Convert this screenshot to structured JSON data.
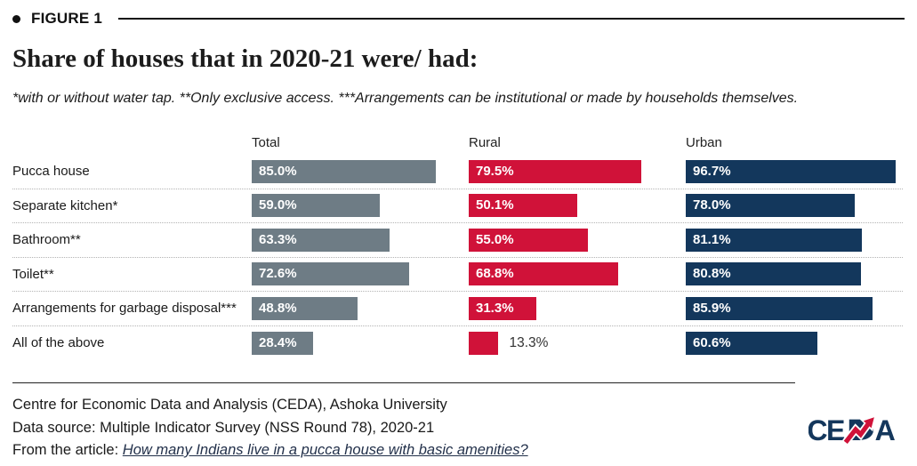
{
  "header": {
    "figure_label": "FIGURE 1",
    "title": "Share of houses that in 2020-21 were/ had:",
    "subtitle": "*with or without water tap. **Only exclusive access. ***Arrangements can be institutional or made by households themselves."
  },
  "chart_data": {
    "type": "bar",
    "orientation": "horizontal",
    "categories": [
      "Pucca house",
      "Separate kitchen*",
      "Bathroom**",
      "Toilet**",
      "Arrangements for garbage disposal***",
      "All of the above"
    ],
    "series": [
      {
        "name": "Total",
        "color": "#6e7c85",
        "values": [
          85.0,
          59.0,
          63.3,
          72.6,
          48.8,
          28.4
        ]
      },
      {
        "name": "Rural",
        "color": "#d01239",
        "values": [
          79.5,
          50.1,
          55.0,
          68.8,
          31.3,
          13.3
        ]
      },
      {
        "name": "Urban",
        "color": "#13375c",
        "values": [
          96.7,
          78.0,
          81.1,
          80.8,
          85.9,
          60.6
        ]
      }
    ],
    "value_suffix": "%",
    "xlim": [
      0,
      100
    ],
    "grid": false,
    "legend_position": "column-headers"
  },
  "footer": {
    "line1": "Centre for Economic Data and Analysis (CEDA), Ashoka University",
    "line2": "Data source: Multiple Indicator Survey (NSS Round 78), 2020-21",
    "line3_prefix": "From the article: ",
    "line3_link": "How many Indians live in a pucca house with basic amenities?",
    "logo_text": "CEDA"
  },
  "colors": {
    "total_bar": "#6e7c85",
    "rural_bar": "#d01239",
    "urban_bar": "#13375c",
    "logo_navy": "#14375c",
    "logo_red": "#d01239"
  }
}
